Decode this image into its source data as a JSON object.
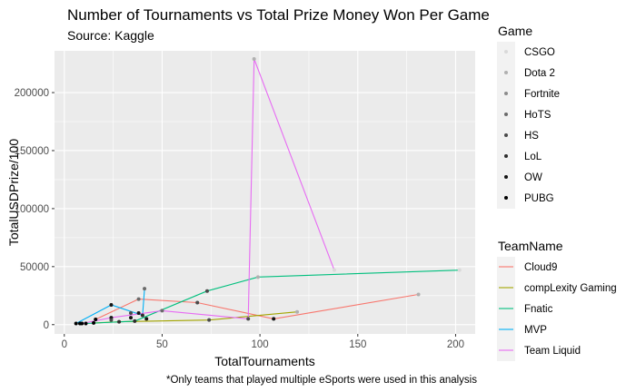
{
  "chart_data": {
    "type": "scatter",
    "title": "Number of Tournaments vs Total Prize Money Won Per Game",
    "subtitle": "Source: Kaggle",
    "caption": "*Only teams that played multiple eSports were used in this analysis",
    "xlabel": "TotalTournaments",
    "ylabel": "TotalUSDPrize/100",
    "xlim": [
      -5,
      210
    ],
    "ylim": [
      -8000,
      236000
    ],
    "x_ticks": [
      0,
      50,
      100,
      150,
      200
    ],
    "y_ticks": [
      0,
      50000,
      100000,
      150000,
      200000
    ],
    "grid": true,
    "legend_position": "right",
    "game_legend": {
      "title": "Game",
      "entries": [
        {
          "name": "CSGO",
          "color": "#d9d9d9"
        },
        {
          "name": "Dota 2",
          "color": "#b0b0b0"
        },
        {
          "name": "Fortnite",
          "color": "#8c8c8c"
        },
        {
          "name": "HoTS",
          "color": "#6b6b6b"
        },
        {
          "name": "HS",
          "color": "#4a4a4a"
        },
        {
          "name": "LoL",
          "color": "#2e2e2e"
        },
        {
          "name": "OW",
          "color": "#141414"
        },
        {
          "name": "PUBG",
          "color": "#000000"
        }
      ]
    },
    "team_legend": {
      "title": "TeamName",
      "entries": [
        {
          "name": "Cloud9",
          "color": "#F8766D"
        },
        {
          "name": "compLexity Gaming",
          "color": "#A3A500"
        },
        {
          "name": "Fnatic",
          "color": "#00BF7D"
        },
        {
          "name": "MVP",
          "color": "#00B0F6"
        },
        {
          "name": "Team Liquid",
          "color": "#E76BF3"
        }
      ]
    },
    "series": [
      {
        "name": "Cloud9",
        "color": "#F8766D",
        "points": [
          {
            "x": 16,
            "y": 4500,
            "game": "PUBG"
          },
          {
            "x": 38,
            "y": 22000,
            "game": "HoTS"
          },
          {
            "x": 68,
            "y": 19000,
            "game": "HS"
          },
          {
            "x": 107,
            "y": 5000,
            "game": "OW"
          },
          {
            "x": 181,
            "y": 26000,
            "game": "Dota 2"
          }
        ]
      },
      {
        "name": "compLexity Gaming",
        "color": "#A3A500",
        "points": [
          {
            "x": 15,
            "y": 1500,
            "game": "PUBG"
          },
          {
            "x": 28,
            "y": 2500,
            "game": "LoL"
          },
          {
            "x": 74,
            "y": 4000,
            "game": "HS"
          },
          {
            "x": 119,
            "y": 11000,
            "game": "Dota 2"
          }
        ]
      },
      {
        "name": "Fnatic",
        "color": "#00BF7D",
        "points": [
          {
            "x": 11,
            "y": 1000,
            "game": "PUBG"
          },
          {
            "x": 36,
            "y": 3000,
            "game": "LoL"
          },
          {
            "x": 73,
            "y": 29000,
            "game": "HS"
          },
          {
            "x": 99,
            "y": 41000,
            "game": "Dota 2"
          },
          {
            "x": 202,
            "y": 47000,
            "game": "CSGO"
          }
        ]
      },
      {
        "name": "MVP",
        "color": "#00B0F6",
        "points": [
          {
            "x": 6,
            "y": 1000,
            "game": "PUBG"
          },
          {
            "x": 24,
            "y": 17000,
            "game": "OW"
          },
          {
            "x": 40,
            "y": 8000,
            "game": "LoL"
          },
          {
            "x": 41,
            "y": 31000,
            "game": "HoTS"
          }
        ]
      },
      {
        "name": "Team Liquid",
        "color": "#E76BF3",
        "points": [
          {
            "x": 9,
            "y": 1000,
            "game": "PUBG"
          },
          {
            "x": 24,
            "y": 6000,
            "game": "OW"
          },
          {
            "x": 50,
            "y": 12000,
            "game": "HoTS"
          },
          {
            "x": 94,
            "y": 5000,
            "game": "HS"
          },
          {
            "x": 97,
            "y": 229000,
            "game": "Dota 2"
          },
          {
            "x": 138,
            "y": 47000,
            "game": "CSGO"
          }
        ]
      }
    ],
    "extra_points": [
      {
        "x": 8,
        "y": 1000,
        "game": "PUBG"
      },
      {
        "x": 24,
        "y": 4000,
        "game": "HS"
      },
      {
        "x": 34,
        "y": 6000,
        "game": "OW"
      },
      {
        "x": 34,
        "y": 10000,
        "game": "HS"
      },
      {
        "x": 38,
        "y": 10000,
        "game": "OW"
      },
      {
        "x": 42,
        "y": 5000,
        "game": "OW"
      }
    ]
  }
}
